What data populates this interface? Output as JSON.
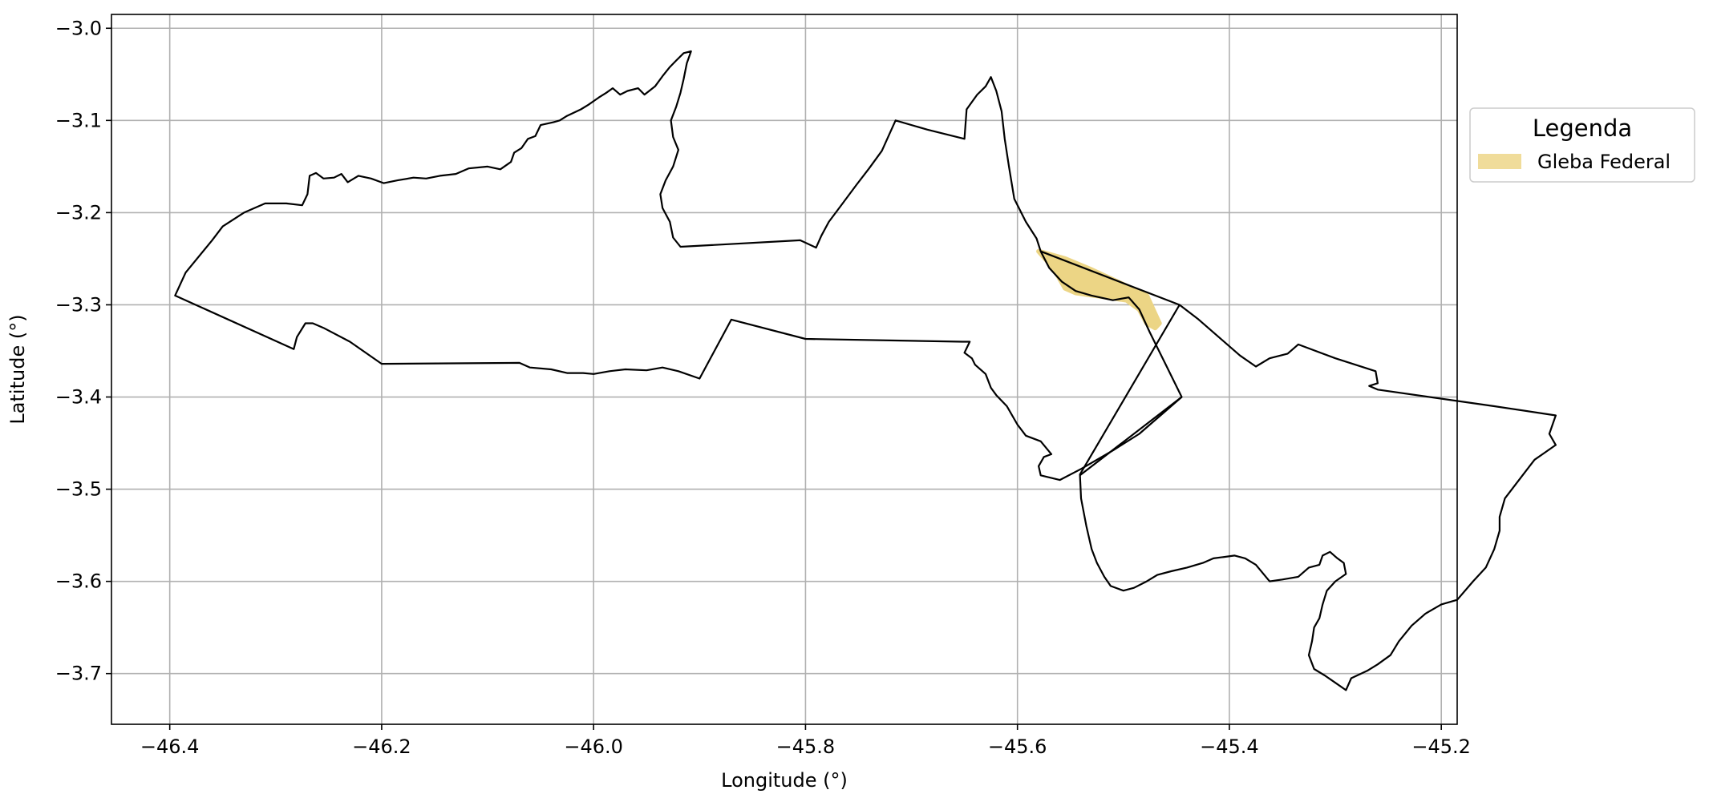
{
  "chart_data": {
    "type": "map",
    "xlabel": "Longitude (°)",
    "ylabel": "Latitude (°)",
    "xlim": [
      -46.455,
      -45.185
    ],
    "ylim": [
      -3.755,
      -2.985
    ],
    "x_ticks": [
      -46.4,
      -46.2,
      -46.0,
      -45.8,
      -45.6,
      -45.4,
      -45.2
    ],
    "y_ticks": [
      -3.0,
      -3.1,
      -3.2,
      -3.3,
      -3.4,
      -3.5,
      -3.6,
      -3.7
    ],
    "grid": true,
    "legend": {
      "title": "Legenda",
      "placement": "outside-right-top",
      "entries": [
        {
          "label": "Gleba Federal",
          "color": "#f0dc9a"
        }
      ]
    },
    "colors": {
      "outline": "#000000",
      "gleba_fill": "#ecd585",
      "grid": "#b0b0b0"
    },
    "layers": [
      {
        "name": "municipality-boundary",
        "kind": "outline",
        "coordinates": [
          [
            -46.395,
            -3.29
          ],
          [
            -46.385,
            -3.265
          ],
          [
            -46.36,
            -3.23
          ],
          [
            -46.35,
            -3.215
          ],
          [
            -46.33,
            -3.2
          ],
          [
            -46.31,
            -3.19
          ],
          [
            -46.29,
            -3.19
          ],
          [
            -46.275,
            -3.192
          ],
          [
            -46.27,
            -3.18
          ],
          [
            -46.268,
            -3.16
          ],
          [
            -46.262,
            -3.157
          ],
          [
            -46.255,
            -3.163
          ],
          [
            -46.245,
            -3.162
          ],
          [
            -46.238,
            -3.158
          ],
          [
            -46.232,
            -3.167
          ],
          [
            -46.222,
            -3.16
          ],
          [
            -46.21,
            -3.163
          ],
          [
            -46.198,
            -3.168
          ],
          [
            -46.185,
            -3.165
          ],
          [
            -46.17,
            -3.162
          ],
          [
            -46.158,
            -3.163
          ],
          [
            -46.145,
            -3.16
          ],
          [
            -46.13,
            -3.158
          ],
          [
            -46.118,
            -3.152
          ],
          [
            -46.1,
            -3.15
          ],
          [
            -46.088,
            -3.153
          ],
          [
            -46.078,
            -3.145
          ],
          [
            -46.075,
            -3.135
          ],
          [
            -46.068,
            -3.13
          ],
          [
            -46.062,
            -3.12
          ],
          [
            -46.055,
            -3.117
          ],
          [
            -46.05,
            -3.105
          ],
          [
            -46.038,
            -3.102
          ],
          [
            -46.032,
            -3.1
          ],
          [
            -46.025,
            -3.095
          ],
          [
            -46.012,
            -3.088
          ],
          [
            -46.005,
            -3.083
          ],
          [
            -45.995,
            -3.075
          ],
          [
            -45.988,
            -3.07
          ],
          [
            -45.982,
            -3.065
          ],
          [
            -45.975,
            -3.072
          ],
          [
            -45.968,
            -3.068
          ],
          [
            -45.958,
            -3.065
          ],
          [
            -45.952,
            -3.072
          ],
          [
            -45.942,
            -3.063
          ],
          [
            -45.935,
            -3.052
          ],
          [
            -45.928,
            -3.042
          ],
          [
            -45.922,
            -3.035
          ],
          [
            -45.915,
            -3.027
          ],
          [
            -45.908,
            -3.025
          ],
          [
            -45.912,
            -3.038
          ],
          [
            -45.915,
            -3.055
          ],
          [
            -45.918,
            -3.07
          ],
          [
            -45.922,
            -3.085
          ],
          [
            -45.927,
            -3.1
          ],
          [
            -45.925,
            -3.118
          ],
          [
            -45.92,
            -3.132
          ],
          [
            -45.925,
            -3.15
          ],
          [
            -45.932,
            -3.165
          ],
          [
            -45.937,
            -3.18
          ],
          [
            -45.935,
            -3.195
          ],
          [
            -45.928,
            -3.21
          ],
          [
            -45.925,
            -3.227
          ],
          [
            -45.918,
            -3.237
          ],
          [
            -45.805,
            -3.23
          ],
          [
            -45.79,
            -3.238
          ],
          [
            -45.785,
            -3.225
          ],
          [
            -45.778,
            -3.21
          ],
          [
            -45.765,
            -3.19
          ],
          [
            -45.752,
            -3.17
          ],
          [
            -45.74,
            -3.152
          ],
          [
            -45.728,
            -3.133
          ],
          [
            -45.715,
            -3.1
          ],
          [
            -45.685,
            -3.11
          ],
          [
            -45.65,
            -3.12
          ],
          [
            -45.648,
            -3.088
          ],
          [
            -45.638,
            -3.072
          ],
          [
            -45.63,
            -3.063
          ],
          [
            -45.625,
            -3.053
          ],
          [
            -45.62,
            -3.068
          ],
          [
            -45.615,
            -3.09
          ],
          [
            -45.612,
            -3.12
          ],
          [
            -45.608,
            -3.15
          ],
          [
            -45.603,
            -3.185
          ],
          [
            -45.592,
            -3.21
          ],
          [
            -45.582,
            -3.228
          ],
          [
            -45.578,
            -3.242
          ],
          [
            -45.57,
            -3.26
          ],
          [
            -45.558,
            -3.275
          ],
          [
            -45.545,
            -3.285
          ],
          [
            -45.53,
            -3.29
          ],
          [
            -45.51,
            -3.295
          ],
          [
            -45.495,
            -3.292
          ],
          [
            -45.485,
            -3.305
          ],
          [
            -45.475,
            -3.33
          ],
          [
            -45.46,
            -3.365
          ],
          [
            -45.445,
            -3.4
          ],
          [
            -45.46,
            -3.415
          ],
          [
            -45.475,
            -3.43
          ],
          [
            -45.485,
            -3.44
          ],
          [
            -45.51,
            -3.458
          ],
          [
            -45.54,
            -3.478
          ],
          [
            -45.56,
            -3.49
          ],
          [
            -45.578,
            -3.485
          ],
          [
            -45.58,
            -3.475
          ],
          [
            -45.575,
            -3.465
          ],
          [
            -45.568,
            -3.462
          ],
          [
            -45.578,
            -3.448
          ],
          [
            -45.592,
            -3.442
          ],
          [
            -45.6,
            -3.43
          ],
          [
            -45.61,
            -3.41
          ],
          [
            -45.62,
            -3.398
          ],
          [
            -45.625,
            -3.39
          ],
          [
            -45.63,
            -3.375
          ],
          [
            -45.64,
            -3.365
          ],
          [
            -45.643,
            -3.358
          ],
          [
            -45.65,
            -3.352
          ],
          [
            -45.645,
            -3.34
          ],
          [
            -45.652,
            -3.34
          ],
          [
            -45.8,
            -3.337
          ],
          [
            -45.87,
            -3.316
          ],
          [
            -45.9,
            -3.38
          ],
          [
            -45.92,
            -3.372
          ],
          [
            -45.935,
            -3.368
          ],
          [
            -45.95,
            -3.371
          ],
          [
            -45.97,
            -3.37
          ],
          [
            -45.985,
            -3.372
          ],
          [
            -46.0,
            -3.375
          ],
          [
            -46.01,
            -3.374
          ],
          [
            -46.025,
            -3.374
          ],
          [
            -46.04,
            -3.37
          ],
          [
            -46.06,
            -3.368
          ],
          [
            -46.07,
            -3.363
          ],
          [
            -46.2,
            -3.364
          ],
          [
            -46.23,
            -3.34
          ],
          [
            -46.255,
            -3.325
          ],
          [
            -46.265,
            -3.32
          ],
          [
            -46.272,
            -3.32
          ],
          [
            -46.28,
            -3.335
          ],
          [
            -46.283,
            -3.348
          ]
        ]
      },
      {
        "name": "southern-region-boundary",
        "kind": "outline",
        "coordinates": [
          [
            -45.541,
            -3.484
          ],
          [
            -45.54,
            -3.51
          ],
          [
            -45.535,
            -3.54
          ],
          [
            -45.53,
            -3.565
          ],
          [
            -45.525,
            -3.58
          ],
          [
            -45.518,
            -3.595
          ],
          [
            -45.512,
            -3.605
          ],
          [
            -45.5,
            -3.61
          ],
          [
            -45.49,
            -3.607
          ],
          [
            -45.478,
            -3.6
          ],
          [
            -45.468,
            -3.593
          ],
          [
            -45.455,
            -3.589
          ],
          [
            -45.44,
            -3.585
          ],
          [
            -45.425,
            -3.58
          ],
          [
            -45.415,
            -3.575
          ],
          [
            -45.395,
            -3.572
          ],
          [
            -45.385,
            -3.575
          ],
          [
            -45.375,
            -3.582
          ],
          [
            -45.362,
            -3.6
          ],
          [
            -45.35,
            -3.598
          ],
          [
            -45.335,
            -3.595
          ],
          [
            -45.325,
            -3.585
          ],
          [
            -45.315,
            -3.582
          ],
          [
            -45.312,
            -3.572
          ],
          [
            -45.305,
            -3.568
          ],
          [
            -45.298,
            -3.575
          ],
          [
            -45.292,
            -3.58
          ],
          [
            -45.29,
            -3.592
          ],
          [
            -45.3,
            -3.6
          ],
          [
            -45.308,
            -3.61
          ],
          [
            -45.312,
            -3.625
          ],
          [
            -45.315,
            -3.64
          ],
          [
            -45.32,
            -3.65
          ],
          [
            -45.322,
            -3.665
          ],
          [
            -45.325,
            -3.68
          ],
          [
            -45.32,
            -3.695
          ],
          [
            -45.31,
            -3.702
          ],
          [
            -45.3,
            -3.71
          ],
          [
            -45.29,
            -3.718
          ],
          [
            -45.285,
            -3.705
          ],
          [
            -45.27,
            -3.697
          ],
          [
            -45.26,
            -3.69
          ],
          [
            -45.248,
            -3.68
          ],
          [
            -45.24,
            -3.665
          ],
          [
            -45.228,
            -3.648
          ],
          [
            -45.215,
            -3.635
          ],
          [
            -45.2,
            -3.625
          ],
          [
            -45.185,
            -3.62
          ],
          [
            -45.17,
            -3.6
          ],
          [
            -45.158,
            -3.585
          ],
          [
            -45.15,
            -3.565
          ],
          [
            -45.145,
            -3.545
          ],
          [
            -45.145,
            -3.53
          ],
          [
            -45.14,
            -3.51
          ],
          [
            -45.13,
            -3.495
          ],
          [
            -45.12,
            -3.48
          ],
          [
            -45.112,
            -3.468
          ],
          [
            -45.102,
            -3.46
          ],
          [
            -45.092,
            -3.452
          ],
          [
            -45.098,
            -3.44
          ],
          [
            -45.092,
            -3.42
          ],
          [
            -45.15,
            -3.41
          ],
          [
            -45.26,
            -3.392
          ],
          [
            -45.268,
            -3.388
          ],
          [
            -45.26,
            -3.385
          ],
          [
            -45.262,
            -3.372
          ],
          [
            -45.3,
            -3.358
          ],
          [
            -45.335,
            -3.343
          ],
          [
            -45.345,
            -3.353
          ],
          [
            -45.362,
            -3.358
          ],
          [
            -45.375,
            -3.367
          ],
          [
            -45.39,
            -3.355
          ],
          [
            -45.41,
            -3.335
          ],
          [
            -45.43,
            -3.315
          ],
          [
            -45.447,
            -3.3
          ]
        ]
      },
      {
        "name": "gleba-federal",
        "kind": "fill",
        "coordinates": [
          [
            -45.58,
            -3.242
          ],
          [
            -45.57,
            -3.255
          ],
          [
            -45.562,
            -3.268
          ],
          [
            -45.555,
            -3.282
          ],
          [
            -45.545,
            -3.287
          ],
          [
            -45.52,
            -3.291
          ],
          [
            -45.497,
            -3.295
          ],
          [
            -45.485,
            -3.305
          ],
          [
            -45.478,
            -3.32
          ],
          [
            -45.47,
            -3.325
          ],
          [
            -45.466,
            -3.32
          ],
          [
            -45.47,
            -3.31
          ],
          [
            -45.478,
            -3.29
          ],
          [
            -45.5,
            -3.278
          ],
          [
            -45.53,
            -3.262
          ],
          [
            -45.555,
            -3.25
          ]
        ]
      }
    ],
    "lines": [
      {
        "name": "gleba-north-border",
        "coordinates": [
          [
            -45.578,
            -3.242
          ],
          [
            -45.447,
            -3.3
          ]
        ]
      },
      {
        "name": "western-diagonal-border",
        "coordinates": [
          [
            -45.445,
            -3.4
          ],
          [
            -45.541,
            -3.485
          ]
        ]
      }
    ]
  }
}
